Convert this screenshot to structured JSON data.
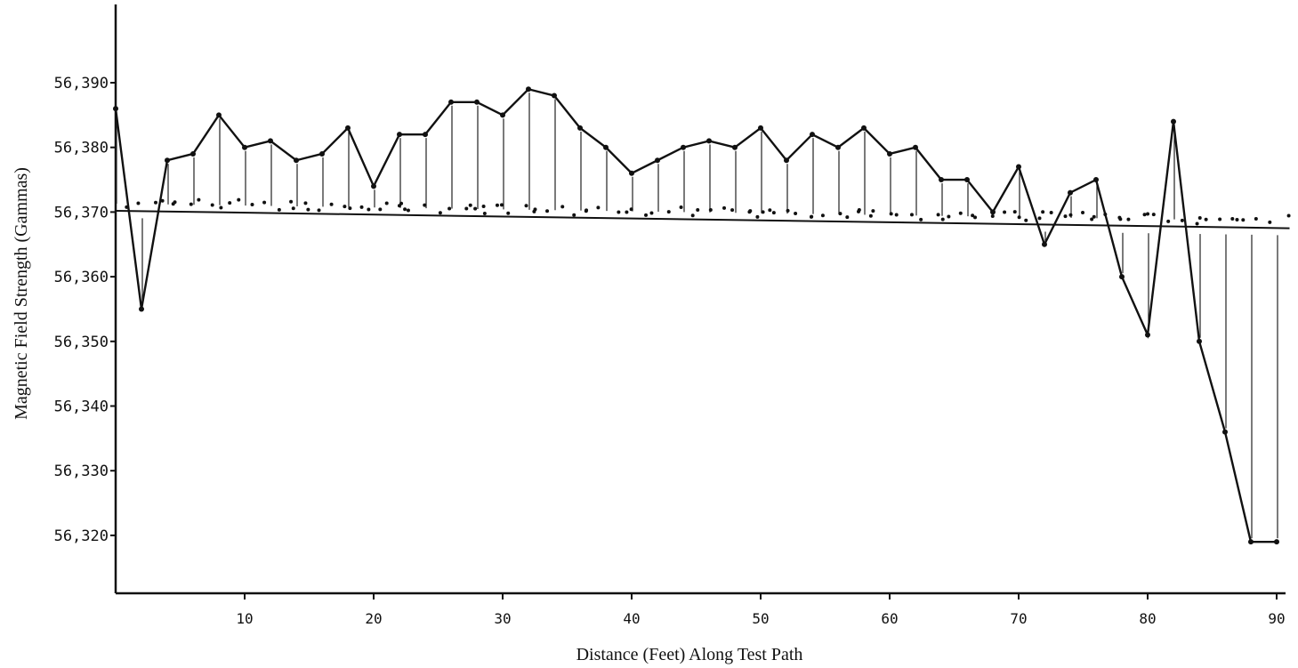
{
  "chart_data": {
    "type": "line",
    "xlabel": "Distance (Feet) Along Test Path",
    "ylabel": "Magnetic Field Strength (Gammas)",
    "xlim": [
      0,
      91
    ],
    "ylim": [
      56310,
      56400
    ],
    "x_ticks": [
      10,
      20,
      30,
      40,
      50,
      60,
      70,
      80,
      90
    ],
    "y_ticks": [
      {
        "value": 56320,
        "label": "56,320"
      },
      {
        "value": 56330,
        "label": "56,330"
      },
      {
        "value": 56340,
        "label": "56,340"
      },
      {
        "value": 56350,
        "label": "56,350"
      },
      {
        "value": 56360,
        "label": "56,360"
      },
      {
        "value": 56370,
        "label": "56,370"
      },
      {
        "value": 56380,
        "label": "56,380"
      },
      {
        "value": 56390,
        "label": "56,390"
      }
    ],
    "series": [
      {
        "x": [
          0,
          2,
          4,
          6,
          8,
          10,
          12,
          14,
          16,
          18,
          20,
          22,
          24,
          26,
          28,
          30,
          32,
          34,
          36,
          38,
          40,
          42,
          44,
          46,
          48,
          50,
          52,
          54,
          56,
          58,
          60,
          62,
          64,
          66,
          68,
          70,
          72,
          74,
          76,
          78,
          80,
          82,
          84,
          86,
          88,
          90
        ],
        "y": [
          56386,
          56355,
          56378,
          56379,
          56385,
          56380,
          56381,
          56378,
          56379,
          56383,
          56374,
          56382,
          56382,
          56387,
          56387,
          56385,
          56389,
          56388,
          56383,
          56380,
          56376,
          56378,
          56380,
          56381,
          56380,
          56383,
          56378,
          56382,
          56380,
          56383,
          56379,
          56380,
          56375,
          56375,
          56370,
          56377,
          56365,
          56373,
          56375,
          56360,
          56351,
          56384,
          56350,
          56336,
          56319,
          56319
        ]
      }
    ],
    "trend_line": {
      "x": [
        0,
        91
      ],
      "y": [
        56370.2,
        56367.5
      ]
    }
  }
}
